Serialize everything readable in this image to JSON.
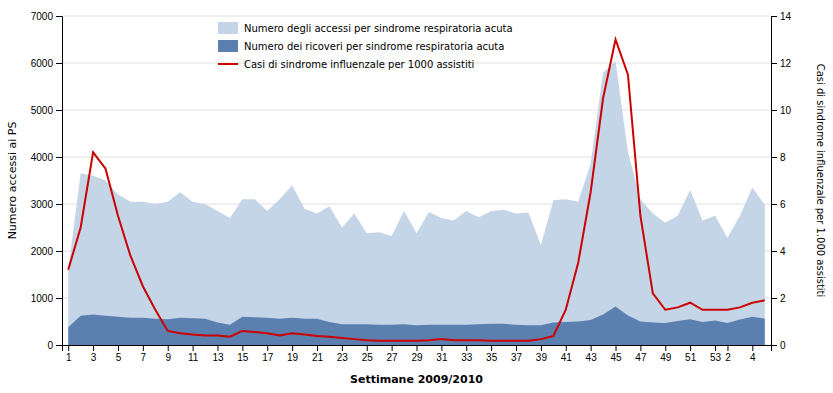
{
  "chart_data": {
    "type": "area",
    "xlabel": "Settimane 2009/2010",
    "ylabel": "Numero accessi ai PS",
    "y2label": "Casi di sindrome influenzale per 1.000 assistiti",
    "categories": [
      "1",
      null,
      "3",
      null,
      "5",
      null,
      "7",
      null,
      "9",
      null,
      "11",
      null,
      "13",
      null,
      "15",
      null,
      "17",
      null,
      "19",
      null,
      "21",
      null,
      "23",
      null,
      "25",
      null,
      "27",
      null,
      "29",
      null,
      "31",
      null,
      "33",
      null,
      "35",
      null,
      "37",
      null,
      "39",
      null,
      "41",
      null,
      "43",
      null,
      "45",
      null,
      "47",
      null,
      "49",
      null,
      "51",
      null,
      "53",
      "2",
      null,
      "4",
      null
    ],
    "series": [
      {
        "name": "Numero degli accessi per sindrome respiratoria acuta",
        "type": "area",
        "color": "#c5d5e8",
        "values": [
          1600,
          3650,
          3600,
          3500,
          3200,
          3050,
          3050,
          3000,
          3050,
          3250,
          3050,
          3000,
          2850,
          2700,
          3100,
          3100,
          2850,
          3100,
          3400,
          2900,
          2800,
          2950,
          2500,
          2800,
          2380,
          2400,
          2320,
          2850,
          2380,
          2830,
          2700,
          2650,
          2850,
          2720,
          2850,
          2880,
          2800,
          2820,
          2120,
          3080,
          3100,
          3050,
          3850,
          5800,
          6050,
          4100,
          3100,
          2800,
          2600,
          2750,
          3300,
          2650,
          2750,
          2280,
          2750,
          3350,
          2980
        ]
      },
      {
        "name": "Numero dei ricoveri per sindrome respiratoria acuta",
        "type": "area",
        "color": "#5b80b0",
        "values": [
          380,
          620,
          650,
          620,
          600,
          580,
          580,
          560,
          550,
          580,
          570,
          560,
          480,
          430,
          600,
          590,
          580,
          560,
          580,
          560,
          560,
          490,
          440,
          440,
          440,
          430,
          430,
          440,
          420,
          430,
          430,
          430,
          430,
          440,
          450,
          450,
          430,
          420,
          420,
          480,
          490,
          500,
          530,
          650,
          820,
          630,
          500,
          480,
          470,
          510,
          550,
          490,
          520,
          470,
          540,
          600,
          560
        ]
      },
      {
        "name": "Casi di sindrome influenzale per 1000 assistiti",
        "type": "line",
        "color": "#cc0000",
        "axis": "y2",
        "values": [
          3.2,
          5.0,
          8.2,
          7.5,
          5.5,
          3.8,
          2.5,
          1.5,
          0.6,
          0.5,
          0.45,
          0.4,
          0.4,
          0.35,
          0.6,
          0.55,
          0.5,
          0.4,
          0.5,
          0.45,
          0.38,
          0.35,
          0.3,
          0.25,
          0.2,
          0.18,
          0.18,
          0.18,
          0.18,
          0.2,
          0.25,
          0.2,
          0.2,
          0.2,
          0.18,
          0.18,
          0.18,
          0.18,
          0.25,
          0.38,
          1.5,
          3.5,
          6.5,
          10.5,
          13.0,
          11.5,
          5.5,
          2.2,
          1.5,
          1.6,
          1.8,
          1.5,
          1.5,
          1.5,
          1.6,
          1.8,
          1.9
        ]
      }
    ],
    "ylim": [
      0,
      7000
    ],
    "yticks": [
      0,
      1000,
      2000,
      3000,
      4000,
      5000,
      6000,
      7000
    ],
    "y2lim": [
      0,
      14
    ],
    "y2ticks": [
      0,
      2,
      4,
      6,
      8,
      10,
      12,
      14
    ],
    "grid": true,
    "legend": "upper left"
  }
}
